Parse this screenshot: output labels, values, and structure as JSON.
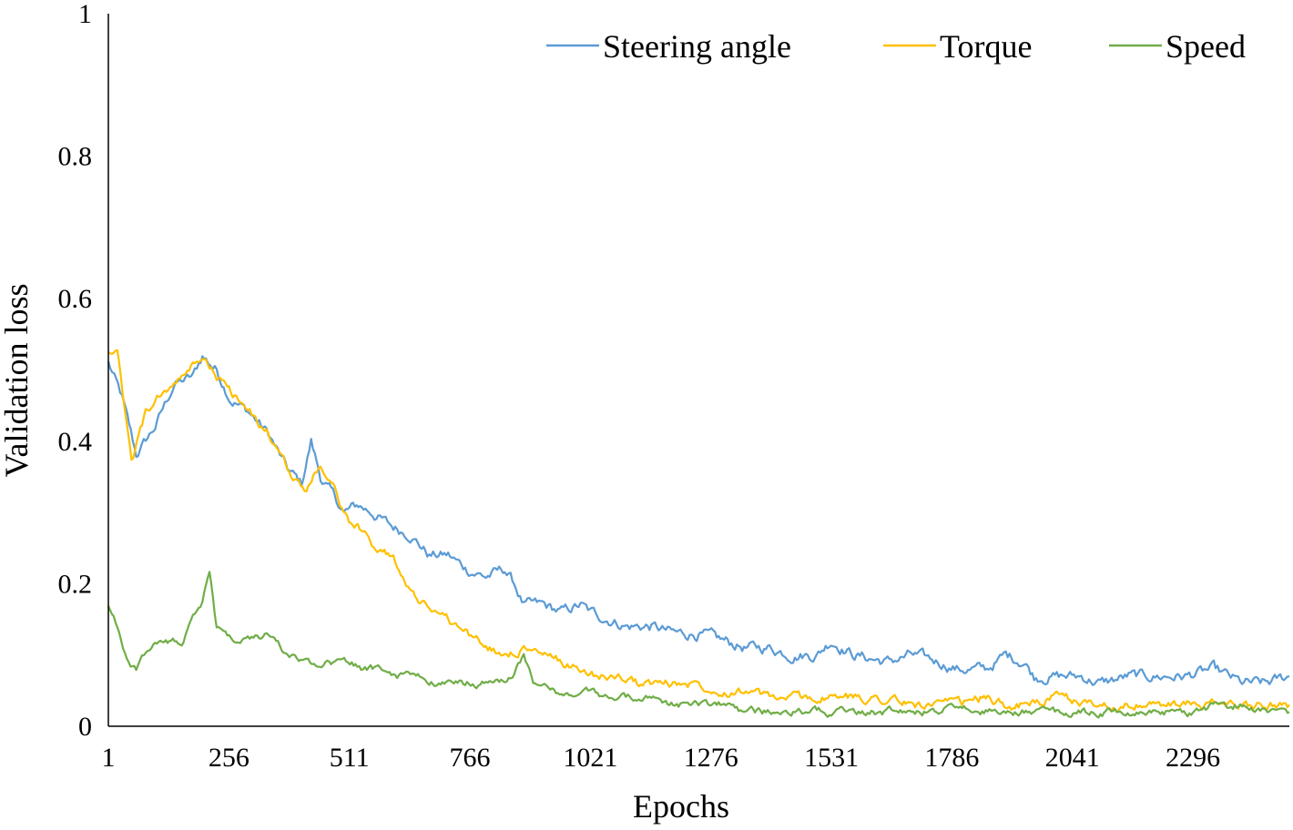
{
  "chart_data": {
    "type": "line",
    "title": "",
    "xlabel": "Epochs",
    "ylabel": "Validation loss",
    "xlim": [
      1,
      2500
    ],
    "ylim": [
      0,
      1
    ],
    "grid": false,
    "legend_position": "top-right",
    "y_ticks": [
      {
        "value": 0,
        "label": "0"
      },
      {
        "value": 0.2,
        "label": "0.2"
      },
      {
        "value": 0.4,
        "label": "0.4"
      },
      {
        "value": 0.6,
        "label": "0.6"
      },
      {
        "value": 0.8,
        "label": "0.8"
      },
      {
        "value": 1,
        "label": "1"
      }
    ],
    "x_ticks": [
      {
        "value": 1,
        "label": "1"
      },
      {
        "value": 256,
        "label": "256"
      },
      {
        "value": 511,
        "label": "511"
      },
      {
        "value": 766,
        "label": "766"
      },
      {
        "value": 1021,
        "label": "1021"
      },
      {
        "value": 1276,
        "label": "1276"
      },
      {
        "value": 1531,
        "label": "1531"
      },
      {
        "value": 1786,
        "label": "1786"
      },
      {
        "value": 2041,
        "label": "2041"
      },
      {
        "value": 2296,
        "label": "2296"
      }
    ],
    "series": [
      {
        "name": "Steering angle",
        "color": "#5b9bd5",
        "x": [
          1,
          30,
          60,
          100,
          140,
          180,
          200,
          230,
          260,
          300,
          340,
          380,
          410,
          430,
          450,
          480,
          500,
          530,
          560,
          600,
          640,
          680,
          720,
          760,
          800,
          840,
          860,
          880,
          920,
          960,
          1000,
          1020,
          1060,
          1100,
          1150,
          1200,
          1250,
          1300,
          1350,
          1400,
          1450,
          1500,
          1530,
          1580,
          1650,
          1700,
          1760,
          1800,
          1860,
          1900,
          1940,
          1960,
          2000,
          2060,
          2100,
          2160,
          2220,
          2280,
          2340,
          2400,
          2450,
          2500
        ],
        "y": [
          0.51,
          0.46,
          0.38,
          0.42,
          0.48,
          0.49,
          0.52,
          0.5,
          0.46,
          0.44,
          0.41,
          0.36,
          0.34,
          0.4,
          0.35,
          0.32,
          0.3,
          0.31,
          0.3,
          0.28,
          0.27,
          0.24,
          0.24,
          0.22,
          0.21,
          0.22,
          0.2,
          0.17,
          0.17,
          0.16,
          0.17,
          0.16,
          0.15,
          0.14,
          0.14,
          0.13,
          0.13,
          0.12,
          0.11,
          0.11,
          0.1,
          0.1,
          0.12,
          0.1,
          0.09,
          0.1,
          0.09,
          0.08,
          0.08,
          0.1,
          0.09,
          0.07,
          0.07,
          0.07,
          0.06,
          0.07,
          0.07,
          0.07,
          0.08,
          0.06,
          0.06,
          0.07
        ]
      },
      {
        "name": "Torque",
        "color": "#ffc000",
        "x": [
          1,
          20,
          50,
          80,
          120,
          160,
          200,
          230,
          260,
          300,
          340,
          380,
          420,
          450,
          480,
          510,
          540,
          570,
          600,
          620,
          650,
          680,
          720,
          760,
          800,
          840,
          880,
          920,
          960,
          1000,
          1040,
          1080,
          1120,
          1160,
          1200,
          1250,
          1300,
          1350,
          1400,
          1450,
          1500,
          1550,
          1600,
          1650,
          1700,
          1800,
          1850,
          1900,
          1950,
          2000,
          2100,
          2200,
          2300,
          2400,
          2500
        ],
        "y": [
          0.53,
          0.52,
          0.37,
          0.44,
          0.47,
          0.49,
          0.52,
          0.49,
          0.47,
          0.44,
          0.41,
          0.36,
          0.33,
          0.37,
          0.33,
          0.29,
          0.27,
          0.25,
          0.24,
          0.22,
          0.18,
          0.17,
          0.15,
          0.13,
          0.11,
          0.1,
          0.11,
          0.1,
          0.09,
          0.08,
          0.07,
          0.07,
          0.06,
          0.06,
          0.06,
          0.06,
          0.05,
          0.05,
          0.04,
          0.04,
          0.04,
          0.04,
          0.04,
          0.04,
          0.03,
          0.03,
          0.04,
          0.03,
          0.03,
          0.04,
          0.03,
          0.03,
          0.03,
          0.03,
          0.03
        ]
      },
      {
        "name": "Speed",
        "color": "#70ad47",
        "x": [
          1,
          20,
          40,
          60,
          80,
          100,
          130,
          160,
          180,
          200,
          215,
          230,
          260,
          300,
          340,
          380,
          420,
          460,
          500,
          540,
          580,
          620,
          660,
          700,
          740,
          780,
          820,
          860,
          880,
          900,
          940,
          980,
          1020,
          1060,
          1100,
          1150,
          1200,
          1250,
          1300,
          1350,
          1400,
          1450,
          1500,
          1550,
          1600,
          1650,
          1700,
          1750,
          1800,
          1850,
          1900,
          1950,
          2000,
          2050,
          2100,
          2150,
          2200,
          2250,
          2300,
          2350,
          2400,
          2450,
          2500
        ],
        "y": [
          0.17,
          0.14,
          0.09,
          0.08,
          0.1,
          0.12,
          0.12,
          0.12,
          0.15,
          0.17,
          0.22,
          0.14,
          0.12,
          0.12,
          0.13,
          0.1,
          0.09,
          0.09,
          0.09,
          0.08,
          0.08,
          0.07,
          0.07,
          0.06,
          0.06,
          0.06,
          0.06,
          0.07,
          0.1,
          0.06,
          0.05,
          0.04,
          0.05,
          0.04,
          0.04,
          0.04,
          0.03,
          0.03,
          0.03,
          0.02,
          0.02,
          0.02,
          0.02,
          0.02,
          0.02,
          0.02,
          0.02,
          0.02,
          0.03,
          0.02,
          0.02,
          0.02,
          0.02,
          0.02,
          0.02,
          0.02,
          0.02,
          0.02,
          0.02,
          0.03,
          0.03,
          0.02,
          0.02
        ]
      }
    ]
  }
}
